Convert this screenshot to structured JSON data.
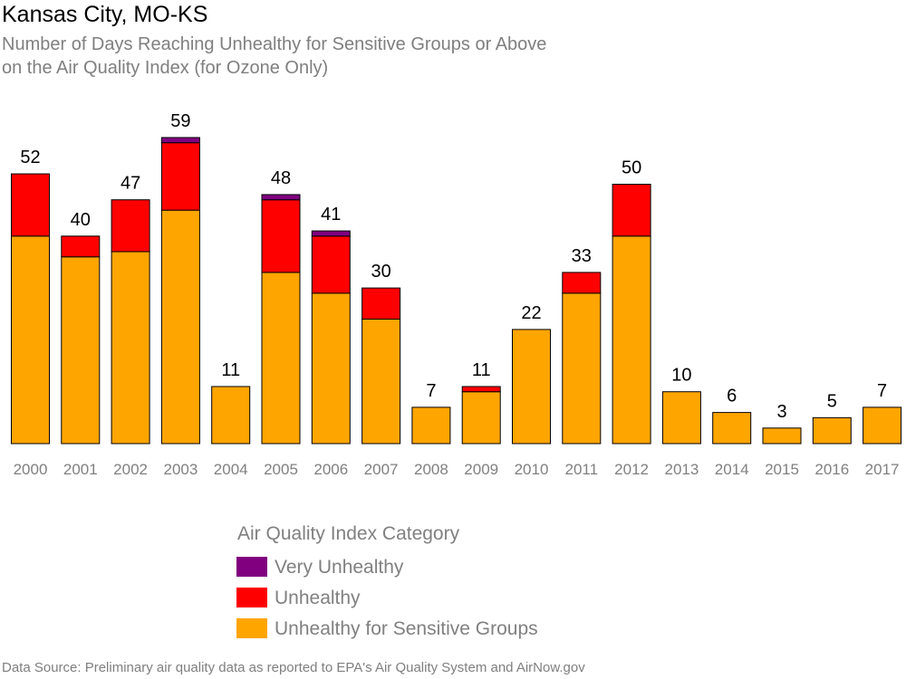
{
  "header": {
    "title": "Kansas City, MO-KS",
    "subtitle_line1": "Number of Days Reaching Unhealthy for Sensitive Groups or Above",
    "subtitle_line2": "on the Air Quality Index (for Ozone Only)"
  },
  "footer": {
    "source": "Data Source: Preliminary air quality data as reported to EPA's Air Quality System and AirNow.gov"
  },
  "colors": {
    "very_unhealthy": "#800080",
    "unhealthy": "#ff0000",
    "usg": "#ffa500",
    "axis_text": "#808080",
    "label_text": "#000000"
  },
  "chart_data": {
    "type": "bar",
    "stacked": true,
    "categories": [
      "2000",
      "2001",
      "2002",
      "2003",
      "2004",
      "2005",
      "2006",
      "2007",
      "2008",
      "2009",
      "2010",
      "2011",
      "2012",
      "2013",
      "2014",
      "2015",
      "2016",
      "2017"
    ],
    "series": [
      {
        "name": "Unhealthy for Sensitive Groups",
        "key": "usg",
        "values": [
          40,
          36,
          37,
          45,
          11,
          33,
          29,
          24,
          7,
          10,
          22,
          29,
          40,
          10,
          6,
          3,
          5,
          7
        ]
      },
      {
        "name": "Unhealthy",
        "key": "unhealthy",
        "values": [
          12,
          4,
          10,
          13,
          0,
          14,
          11,
          6,
          0,
          1,
          0,
          4,
          10,
          0,
          0,
          0,
          0,
          0
        ]
      },
      {
        "name": "Very Unhealthy",
        "key": "very_unhealthy",
        "values": [
          0,
          0,
          0,
          1,
          0,
          1,
          1,
          0,
          0,
          0,
          0,
          0,
          0,
          0,
          0,
          0,
          0,
          0
        ]
      }
    ],
    "totals": [
      52,
      40,
      47,
      59,
      11,
      48,
      41,
      30,
      7,
      11,
      22,
      33,
      50,
      10,
      6,
      3,
      5,
      7
    ],
    "ylim": [
      0,
      60
    ],
    "grid": false,
    "legend": {
      "title": "Air Quality Index Category",
      "placement": "bottom",
      "entries": [
        {
          "label": "Very Unhealthy",
          "key": "very_unhealthy"
        },
        {
          "label": "Unhealthy",
          "key": "unhealthy"
        },
        {
          "label": "Unhealthy for Sensitive Groups",
          "key": "usg"
        }
      ]
    }
  }
}
